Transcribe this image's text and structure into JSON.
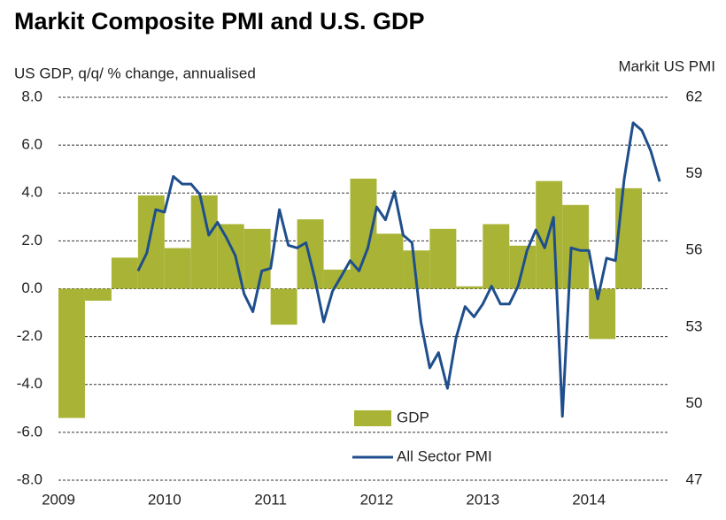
{
  "chart_data": {
    "type": "bar_line",
    "title": "Markit Composite PMI and U.S. GDP",
    "y_label": "US GDP, q/q/ % change, annualised",
    "y2_label": "Markit  US PMI",
    "xlim": [
      2009,
      2014.75
    ],
    "xticks": [
      2009,
      2010,
      2011,
      2012,
      2013,
      2014
    ],
    "ylim": [
      -8,
      8
    ],
    "yticks": [
      {
        "value": -8,
        "label": "-8.0"
      },
      {
        "value": -6,
        "label": "-6.0"
      },
      {
        "value": -4,
        "label": "-4.0"
      },
      {
        "value": -2,
        "label": "-2.0"
      },
      {
        "value": 0,
        "label": "0.0"
      },
      {
        "value": 2,
        "label": "2.0"
      },
      {
        "value": 4,
        "label": "4.0"
      },
      {
        "value": 6,
        "label": "6.0"
      },
      {
        "value": 8,
        "label": "8.0"
      }
    ],
    "y2lim": [
      47,
      62
    ],
    "y2ticks": [
      47,
      50,
      53,
      56,
      59,
      62
    ],
    "grid": true,
    "series": [
      {
        "name": "GDP",
        "type": "bar",
        "color": "#a9b436",
        "x": [
          2009,
          2009.25,
          2009.5,
          2009.75,
          2010,
          2010.25,
          2010.5,
          2010.75,
          2011,
          2011.25,
          2011.5,
          2011.75,
          2012,
          2012.25,
          2012.5,
          2012.75,
          2013,
          2013.25,
          2013.5,
          2013.75,
          2014,
          2014.25
        ],
        "values": [
          -5.4,
          -0.5,
          1.3,
          3.9,
          1.7,
          3.9,
          2.7,
          2.5,
          -1.5,
          2.9,
          0.8,
          4.6,
          2.3,
          1.6,
          2.5,
          0.1,
          2.7,
          1.8,
          4.5,
          3.5,
          -2.1,
          4.2
        ]
      },
      {
        "name": "All Sector PMI",
        "type": "line",
        "axis": "y2",
        "color": "#1f4e8c",
        "x": [
          2009.75,
          2009.833,
          2009.917,
          2010,
          2010.083,
          2010.167,
          2010.25,
          2010.333,
          2010.417,
          2010.5,
          2010.583,
          2010.667,
          2010.75,
          2010.833,
          2010.917,
          2011,
          2011.083,
          2011.167,
          2011.25,
          2011.333,
          2011.417,
          2011.5,
          2011.583,
          2011.667,
          2011.75,
          2011.833,
          2011.917,
          2012,
          2012.083,
          2012.167,
          2012.25,
          2012.333,
          2012.417,
          2012.5,
          2012.583,
          2012.667,
          2012.75,
          2012.833,
          2012.917,
          2013,
          2013.083,
          2013.167,
          2013.25,
          2013.333,
          2013.417,
          2013.5,
          2013.583,
          2013.667,
          2013.75,
          2013.833,
          2013.917,
          2014,
          2014.083,
          2014.167,
          2014.25,
          2014.333,
          2014.417,
          2014.5,
          2014.583,
          2014.667
        ],
        "values": [
          55.2,
          55.9,
          57.6,
          57.5,
          58.9,
          58.6,
          58.6,
          58.2,
          56.6,
          57.1,
          56.5,
          55.8,
          54.3,
          53.6,
          55.2,
          55.3,
          57.6,
          56.2,
          56.1,
          56.3,
          54.9,
          53.2,
          54.4,
          55.0,
          55.6,
          55.2,
          56.1,
          57.7,
          57.2,
          58.3,
          56.6,
          56.3,
          53.2,
          51.4,
          52.0,
          50.6,
          52.6,
          53.8,
          53.4,
          53.9,
          54.6,
          53.9,
          53.9,
          54.6,
          56.0,
          56.8,
          56.1,
          57.3,
          49.5,
          56.1,
          56.0,
          56.0,
          54.1,
          55.7,
          55.6,
          58.8,
          61.0,
          60.7,
          59.9,
          58.7
        ]
      }
    ]
  }
}
